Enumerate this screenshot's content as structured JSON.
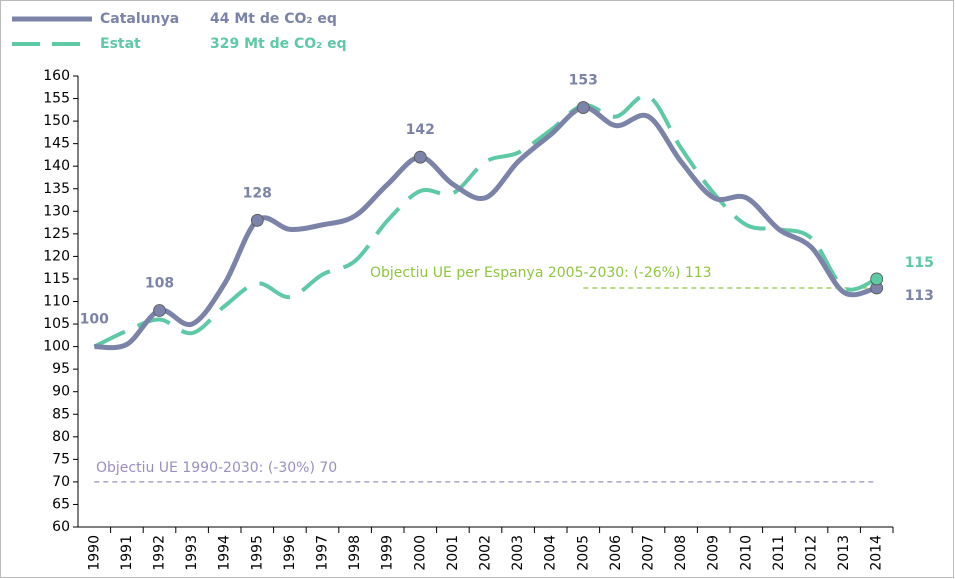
{
  "chart_data": {
    "type": "line",
    "categories": [
      "1990",
      "1991",
      "1992",
      "1993",
      "1994",
      "1995",
      "1996",
      "1997",
      "1998",
      "1999",
      "2000",
      "2001",
      "2002",
      "2003",
      "2004",
      "2005",
      "2006",
      "2007",
      "2008",
      "2009",
      "2010",
      "2011",
      "2012",
      "2013",
      "2014"
    ],
    "series": [
      {
        "name": "Catalunya",
        "legend_note": "44 Mt de CO₂ eq",
        "color": "#7b83a8",
        "dashed": false,
        "values": [
          100,
          100.5,
          108,
          105,
          114,
          128,
          126,
          127,
          129,
          136,
          142,
          136,
          133,
          141,
          147,
          153,
          149,
          151,
          141,
          133,
          133,
          126,
          122,
          112,
          113
        ],
        "label_indices": [
          0,
          2,
          5,
          10,
          15,
          24
        ]
      },
      {
        "name": "Estat",
        "legend_note": "329 Mt de CO₂ eq",
        "color": "#5ec9a5",
        "dashed": true,
        "values": [
          100,
          103.5,
          106,
          103,
          109,
          114,
          111,
          116,
          119,
          128,
          134.5,
          134,
          141,
          143,
          148,
          153.5,
          151,
          155.5,
          144,
          134,
          127,
          126,
          124,
          113,
          115
        ],
        "label_indices": [
          24
        ]
      }
    ],
    "reference_lines": [
      {
        "value": 113,
        "start": "2005",
        "end": "2014",
        "color": "#8ec63f",
        "label": "Objectiu UE per Espanya 2005-2030:   (-26%) 113"
      },
      {
        "value": 70,
        "start": "1990",
        "end": "2014",
        "color": "#9a8fc0",
        "label": "Objectiu UE 1990-2030:   (-30%) 70"
      }
    ],
    "ylim": [
      60,
      160
    ],
    "yticks": [
      60,
      65,
      70,
      75,
      80,
      85,
      90,
      95,
      100,
      105,
      110,
      115,
      120,
      125,
      130,
      135,
      140,
      145,
      150,
      155,
      160
    ]
  }
}
